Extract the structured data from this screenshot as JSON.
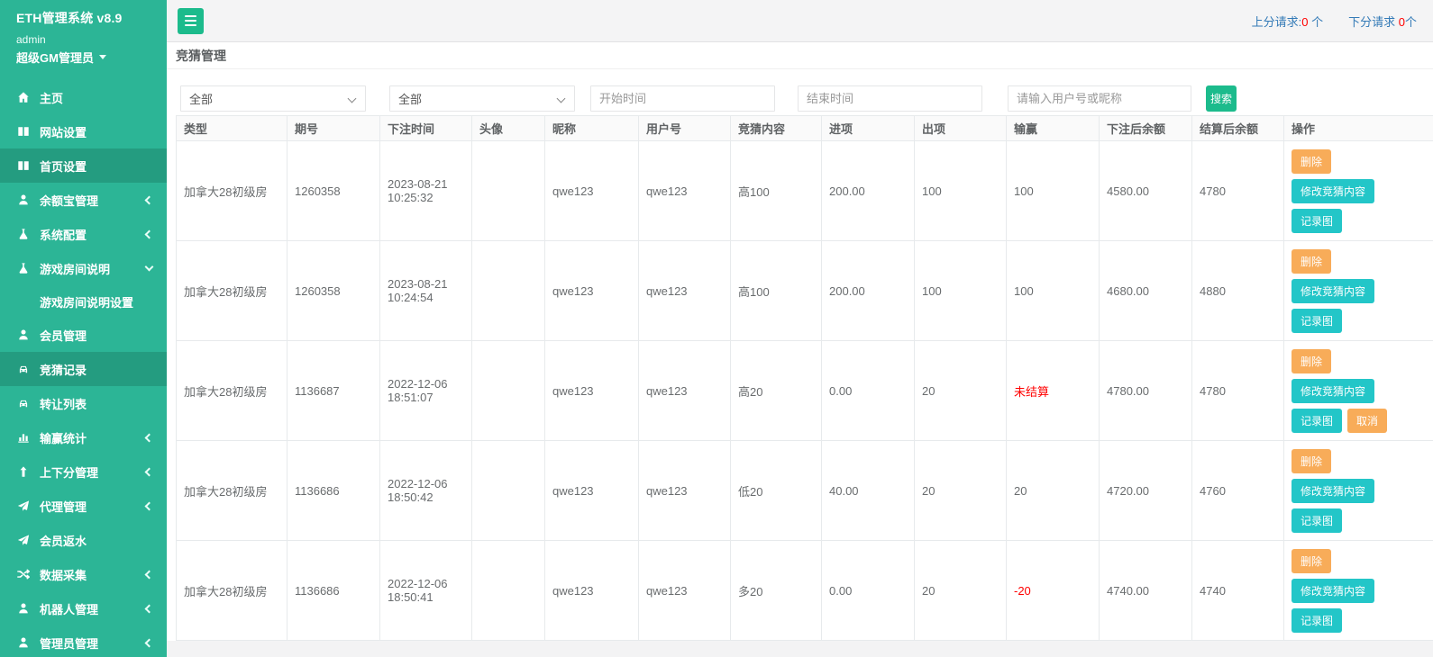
{
  "colors": {
    "sidebar_green": "#2CB596",
    "sidebar_active_green": "#249C80",
    "button_green": "#1CBB8C",
    "teal_button": "#23C6C8",
    "orange_button": "#F8AC59",
    "link_blue": "#337AB7",
    "alert_red": "#FF0000"
  },
  "app": {
    "title": "ETH管理系统 v8.9",
    "user": "admin",
    "role": "超级GM管理员"
  },
  "sidebar": {
    "items": [
      {
        "icon": "home-icon",
        "label": "主页",
        "arrow": "none",
        "active": false
      },
      {
        "icon": "columns-icon",
        "label": "网站设置",
        "arrow": "none",
        "active": false
      },
      {
        "icon": "columns-icon",
        "label": "首页设置",
        "arrow": "none",
        "active": true
      },
      {
        "icon": "user-icon",
        "label": "余额宝管理",
        "arrow": "left",
        "active": false
      },
      {
        "icon": "flask-icon",
        "label": "系统配置",
        "arrow": "left",
        "active": false
      },
      {
        "icon": "flask-icon",
        "label": "游戏房间说明",
        "arrow": "down",
        "active": false,
        "children": [
          {
            "label": "游戏房间说明设置"
          }
        ]
      },
      {
        "icon": "user-icon",
        "label": "会员管理",
        "arrow": "none",
        "active": false
      },
      {
        "icon": "car-icon",
        "label": "竞猜记录",
        "arrow": "none",
        "active": true
      },
      {
        "icon": "car-icon",
        "label": "转让列表",
        "arrow": "none",
        "active": false
      },
      {
        "icon": "chart-icon",
        "label": "输赢统计",
        "arrow": "left",
        "active": false
      },
      {
        "icon": "arrow-up-icon",
        "label": "上下分管理",
        "arrow": "left",
        "active": false
      },
      {
        "icon": "paper-plane-icon",
        "label": "代理管理",
        "arrow": "left",
        "active": false
      },
      {
        "icon": "paper-plane-icon",
        "label": "会员返水",
        "arrow": "none",
        "active": false
      },
      {
        "icon": "shuffle-icon",
        "label": "数据采集",
        "arrow": "left",
        "active": false
      },
      {
        "icon": "user-icon",
        "label": "机器人管理",
        "arrow": "left",
        "active": false
      },
      {
        "icon": "user-icon",
        "label": "管理员管理",
        "arrow": "left",
        "active": false
      }
    ]
  },
  "topbar": {
    "up": {
      "label": "上分请求:",
      "count": "0",
      "unit": " 个"
    },
    "down": {
      "label": "下分请求 ",
      "count": "0",
      "unit": "个"
    }
  },
  "page": {
    "title": "竞猜管理"
  },
  "filters": {
    "type_value": "全部",
    "room_value": "全部",
    "start_placeholder": "开始时间",
    "end_placeholder": "结束时间",
    "user_placeholder": "请输入用户号或昵称",
    "search_label": "搜索"
  },
  "table": {
    "headers": [
      "类型",
      "期号",
      "下注时间",
      "头像",
      "昵称",
      "用户号",
      "竞猜内容",
      "进项",
      "出项",
      "输赢",
      "下注后余额",
      "结算后余额",
      "操作"
    ],
    "action_labels": {
      "delete": "删除",
      "modify": "修改竞猜内容",
      "record": "记录图",
      "cancel": "取消"
    },
    "rows": [
      {
        "type": "加拿大28初级房",
        "issue": "1260358",
        "bet_time": "2023-08-21 10:25:32",
        "avatar": "",
        "nickname": "qwe123",
        "user_id": "qwe123",
        "bet_content": "高100",
        "in_amount": "200.00",
        "out_amount": "100",
        "win_lose": "100",
        "win_lose_red": false,
        "balance_after_bet": "4580.00",
        "balance_after_settle": "4780",
        "actions": [
          "delete",
          "modify",
          "record"
        ]
      },
      {
        "type": "加拿大28初级房",
        "issue": "1260358",
        "bet_time": "2023-08-21 10:24:54",
        "avatar": "",
        "nickname": "qwe123",
        "user_id": "qwe123",
        "bet_content": "高100",
        "in_amount": "200.00",
        "out_amount": "100",
        "win_lose": "100",
        "win_lose_red": false,
        "balance_after_bet": "4680.00",
        "balance_after_settle": "4880",
        "actions": [
          "delete",
          "modify",
          "record"
        ]
      },
      {
        "type": "加拿大28初级房",
        "issue": "1136687",
        "bet_time": "2022-12-06 18:51:07",
        "avatar": "",
        "nickname": "qwe123",
        "user_id": "qwe123",
        "bet_content": "高20",
        "in_amount": "0.00",
        "out_amount": "20",
        "win_lose": "未结算",
        "win_lose_red": true,
        "balance_after_bet": "4780.00",
        "balance_after_settle": "4780",
        "actions": [
          "delete",
          "modify",
          "record",
          "cancel"
        ]
      },
      {
        "type": "加拿大28初级房",
        "issue": "1136686",
        "bet_time": "2022-12-06 18:50:42",
        "avatar": "",
        "nickname": "qwe123",
        "user_id": "qwe123",
        "bet_content": "低20",
        "in_amount": "40.00",
        "out_amount": "20",
        "win_lose": "20",
        "win_lose_red": false,
        "balance_after_bet": "4720.00",
        "balance_after_settle": "4760",
        "actions": [
          "delete",
          "modify",
          "record"
        ]
      },
      {
        "type": "加拿大28初级房",
        "issue": "1136686",
        "bet_time": "2022-12-06 18:50:41",
        "avatar": "",
        "nickname": "qwe123",
        "user_id": "qwe123",
        "bet_content": "多20",
        "in_amount": "0.00",
        "out_amount": "20",
        "win_lose": "-20",
        "win_lose_red": true,
        "balance_after_bet": "4740.00",
        "balance_after_settle": "4740",
        "actions": [
          "delete",
          "modify",
          "record"
        ]
      }
    ]
  }
}
